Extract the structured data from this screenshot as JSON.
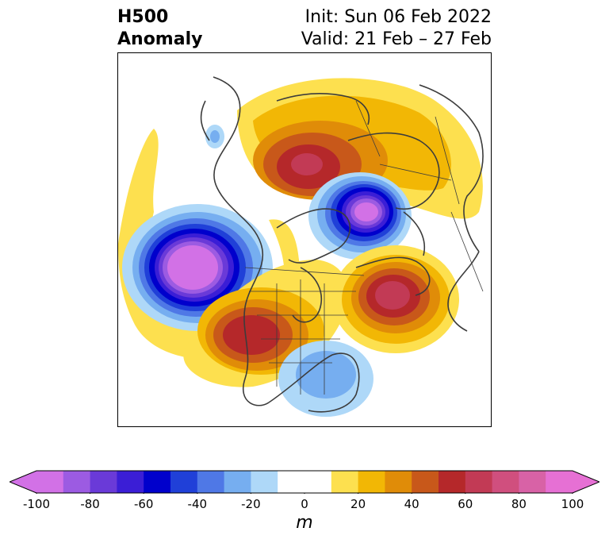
{
  "title": {
    "left_line1": "H500",
    "left_line2": "Anomaly",
    "right_line1": "Init: Sun 06 Feb 2022",
    "right_line2": "Valid: 21 Feb – 27 Feb"
  },
  "colorbar": {
    "unit": "m",
    "min": -100,
    "max": 100,
    "step": 10,
    "ticks": [
      "-100",
      "-80",
      "-60",
      "-40",
      "-20",
      "0",
      "20",
      "40",
      "60",
      "80",
      "100"
    ],
    "colors": [
      "#d271e6",
      "#9c5be2",
      "#6a3ad8",
      "#3b1ed6",
      "#0000cc",
      "#2040d8",
      "#4f78e6",
      "#76aef0",
      "#aed8f8",
      "#ffffff",
      "#ffffff",
      "#fde04f",
      "#f2b705",
      "#e08c08",
      "#c8581a",
      "#b5282a",
      "#c23a55",
      "#d04f7e",
      "#d862a6",
      "#e670d4"
    ],
    "extend_low": "#d271e6",
    "extend_high": "#e670d4"
  },
  "map": {
    "projection": "north-polar-stereographic",
    "field": "500 hPa geopotential height anomaly",
    "features": [
      {
        "name": "ridge-north-central-asia",
        "peak_value": 60
      },
      {
        "name": "trough-arctic-siberia",
        "peak_value": -100
      },
      {
        "name": "trough-gulf-of-alaska",
        "peak_value": -100
      },
      {
        "name": "ridge-western-north-america",
        "peak_value": 60
      },
      {
        "name": "ridge-north-atlantic",
        "peak_value": 60
      },
      {
        "name": "trough-eastern-us",
        "peak_value": -40
      }
    ]
  }
}
